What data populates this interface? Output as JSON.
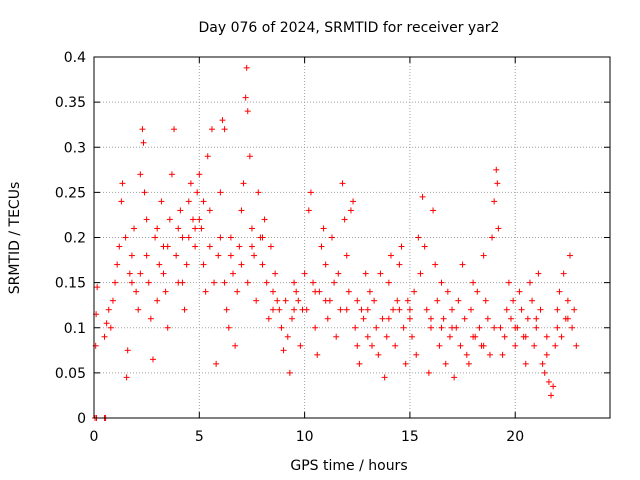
{
  "chart_data": {
    "type": "scatter",
    "title": "Day 076 of 2024, SRMTID for receiver yar2",
    "xlabel": "GPS time / hours",
    "ylabel": "SRMTID / TECUs",
    "xlim": [
      0,
      24.5
    ],
    "ylim": [
      0,
      0.4
    ],
    "xticks": [
      0,
      5,
      10,
      15,
      20
    ],
    "xtick_labels": [
      "0",
      "5",
      "10",
      "15",
      "20"
    ],
    "yticks": [
      0,
      0.05,
      0.1,
      0.15,
      0.2,
      0.25,
      0.3,
      0.35,
      0.4
    ],
    "ytick_labels": [
      "0",
      "0.05",
      "0.1",
      "0.15",
      "0.2",
      "0.25",
      "0.3",
      "0.35",
      "0.4"
    ],
    "grid": true,
    "marker": "+",
    "colors": {
      "series": "#ff0000",
      "grid": "#a0a0a0",
      "axis": "#000000"
    },
    "series": [
      {
        "name": "SRMTID",
        "points": [
          [
            0.05,
            0.0
          ],
          [
            0.12,
            0.0
          ],
          [
            0.5,
            0.0
          ],
          [
            0.55,
            0.0
          ],
          [
            0.1,
            0.115
          ],
          [
            0.15,
            0.145
          ],
          [
            0.08,
            0.08
          ],
          [
            0.5,
            0.09
          ],
          [
            0.6,
            0.105
          ],
          [
            0.7,
            0.12
          ],
          [
            0.8,
            0.1
          ],
          [
            0.9,
            0.13
          ],
          [
            1.0,
            0.15
          ],
          [
            1.1,
            0.17
          ],
          [
            1.2,
            0.19
          ],
          [
            1.3,
            0.24
          ],
          [
            1.35,
            0.26
          ],
          [
            1.5,
            0.2
          ],
          [
            1.6,
            0.075
          ],
          [
            1.55,
            0.045
          ],
          [
            1.7,
            0.16
          ],
          [
            1.8,
            0.18
          ],
          [
            1.9,
            0.21
          ],
          [
            2.0,
            0.14
          ],
          [
            2.1,
            0.12
          ],
          [
            2.2,
            0.27
          ],
          [
            2.3,
            0.32
          ],
          [
            2.35,
            0.305
          ],
          [
            2.4,
            0.25
          ],
          [
            2.5,
            0.18
          ],
          [
            2.6,
            0.15
          ],
          [
            2.7,
            0.11
          ],
          [
            2.8,
            0.065
          ],
          [
            2.9,
            0.2
          ],
          [
            3.0,
            0.13
          ],
          [
            3.1,
            0.17
          ],
          [
            3.2,
            0.24
          ],
          [
            3.3,
            0.19
          ],
          [
            3.4,
            0.14
          ],
          [
            3.5,
            0.1
          ],
          [
            3.6,
            0.22
          ],
          [
            3.7,
            0.27
          ],
          [
            3.8,
            0.32
          ],
          [
            3.9,
            0.18
          ],
          [
            4.0,
            0.15
          ],
          [
            4.1,
            0.23
          ],
          [
            4.2,
            0.2
          ],
          [
            4.3,
            0.12
          ],
          [
            4.4,
            0.17
          ],
          [
            4.5,
            0.24
          ],
          [
            4.6,
            0.26
          ],
          [
            4.7,
            0.22
          ],
          [
            4.8,
            0.19
          ],
          [
            4.9,
            0.25
          ],
          [
            5.0,
            0.27
          ],
          [
            5.1,
            0.21
          ],
          [
            5.2,
            0.17
          ],
          [
            5.3,
            0.14
          ],
          [
            5.4,
            0.29
          ],
          [
            5.5,
            0.23
          ],
          [
            5.6,
            0.32
          ],
          [
            5.7,
            0.15
          ],
          [
            5.8,
            0.06
          ],
          [
            5.9,
            0.18
          ],
          [
            6.0,
            0.25
          ],
          [
            6.1,
            0.33
          ],
          [
            6.2,
            0.32
          ],
          [
            6.3,
            0.12
          ],
          [
            6.4,
            0.1
          ],
          [
            6.5,
            0.2
          ],
          [
            6.6,
            0.16
          ],
          [
            6.7,
            0.08
          ],
          [
            6.8,
            0.14
          ],
          [
            6.9,
            0.19
          ],
          [
            7.0,
            0.23
          ],
          [
            7.1,
            0.26
          ],
          [
            7.2,
            0.355
          ],
          [
            7.25,
            0.388
          ],
          [
            7.3,
            0.34
          ],
          [
            7.4,
            0.29
          ],
          [
            7.5,
            0.21
          ],
          [
            7.6,
            0.18
          ],
          [
            7.7,
            0.13
          ],
          [
            7.8,
            0.25
          ],
          [
            7.9,
            0.2
          ],
          [
            8.0,
            0.17
          ],
          [
            8.1,
            0.22
          ],
          [
            8.2,
            0.15
          ],
          [
            8.3,
            0.11
          ],
          [
            8.4,
            0.19
          ],
          [
            8.5,
            0.14
          ],
          [
            8.6,
            0.16
          ],
          [
            8.7,
            0.13
          ],
          [
            8.8,
            0.12
          ],
          [
            8.9,
            0.1
          ],
          [
            9.0,
            0.075
          ],
          [
            9.1,
            0.13
          ],
          [
            9.2,
            0.09
          ],
          [
            9.3,
            0.05
          ],
          [
            9.4,
            0.11
          ],
          [
            9.5,
            0.15
          ],
          [
            9.6,
            0.14
          ],
          [
            9.7,
            0.13
          ],
          [
            9.8,
            0.08
          ],
          [
            9.9,
            0.12
          ],
          [
            10.0,
            0.16
          ],
          [
            10.1,
            0.12
          ],
          [
            10.2,
            0.23
          ],
          [
            10.3,
            0.25
          ],
          [
            10.4,
            0.15
          ],
          [
            10.5,
            0.1
          ],
          [
            10.6,
            0.07
          ],
          [
            10.7,
            0.14
          ],
          [
            10.8,
            0.19
          ],
          [
            10.9,
            0.21
          ],
          [
            11.0,
            0.17
          ],
          [
            11.1,
            0.11
          ],
          [
            11.2,
            0.13
          ],
          [
            11.3,
            0.2
          ],
          [
            11.4,
            0.15
          ],
          [
            11.5,
            0.09
          ],
          [
            11.6,
            0.16
          ],
          [
            11.7,
            0.12
          ],
          [
            11.8,
            0.26
          ],
          [
            11.9,
            0.22
          ],
          [
            12.0,
            0.18
          ],
          [
            12.1,
            0.14
          ],
          [
            12.2,
            0.23
          ],
          [
            12.3,
            0.24
          ],
          [
            12.4,
            0.1
          ],
          [
            12.5,
            0.08
          ],
          [
            12.6,
            0.06
          ],
          [
            12.7,
            0.12
          ],
          [
            12.8,
            0.11
          ],
          [
            12.9,
            0.16
          ],
          [
            13.0,
            0.09
          ],
          [
            13.1,
            0.14
          ],
          [
            13.2,
            0.08
          ],
          [
            13.3,
            0.13
          ],
          [
            13.4,
            0.1
          ],
          [
            13.5,
            0.07
          ],
          [
            13.6,
            0.16
          ],
          [
            13.7,
            0.11
          ],
          [
            13.8,
            0.045
          ],
          [
            13.9,
            0.09
          ],
          [
            14.0,
            0.15
          ],
          [
            14.1,
            0.18
          ],
          [
            14.2,
            0.12
          ],
          [
            14.3,
            0.08
          ],
          [
            14.4,
            0.13
          ],
          [
            14.5,
            0.17
          ],
          [
            14.6,
            0.19
          ],
          [
            14.7,
            0.1
          ],
          [
            14.8,
            0.06
          ],
          [
            14.9,
            0.13
          ],
          [
            15.0,
            0.11
          ],
          [
            15.1,
            0.09
          ],
          [
            15.2,
            0.14
          ],
          [
            15.3,
            0.07
          ],
          [
            15.4,
            0.2
          ],
          [
            15.5,
            0.16
          ],
          [
            15.6,
            0.245
          ],
          [
            15.7,
            0.19
          ],
          [
            15.8,
            0.12
          ],
          [
            15.9,
            0.05
          ],
          [
            16.0,
            0.1
          ],
          [
            16.1,
            0.23
          ],
          [
            16.2,
            0.17
          ],
          [
            16.3,
            0.13
          ],
          [
            16.4,
            0.08
          ],
          [
            16.5,
            0.15
          ],
          [
            16.6,
            0.11
          ],
          [
            16.7,
            0.06
          ],
          [
            16.8,
            0.14
          ],
          [
            16.9,
            0.09
          ],
          [
            17.0,
            0.12
          ],
          [
            17.1,
            0.045
          ],
          [
            17.2,
            0.1
          ],
          [
            17.3,
            0.13
          ],
          [
            17.4,
            0.08
          ],
          [
            17.5,
            0.17
          ],
          [
            17.6,
            0.11
          ],
          [
            17.7,
            0.07
          ],
          [
            17.8,
            0.06
          ],
          [
            17.9,
            0.12
          ],
          [
            18.0,
            0.15
          ],
          [
            18.1,
            0.09
          ],
          [
            18.2,
            0.14
          ],
          [
            18.3,
            0.1
          ],
          [
            18.4,
            0.08
          ],
          [
            18.5,
            0.18
          ],
          [
            18.6,
            0.13
          ],
          [
            18.7,
            0.11
          ],
          [
            18.8,
            0.07
          ],
          [
            18.9,
            0.2
          ],
          [
            19.0,
            0.24
          ],
          [
            19.1,
            0.275
          ],
          [
            19.15,
            0.26
          ],
          [
            19.2,
            0.21
          ],
          [
            19.3,
            0.1
          ],
          [
            19.4,
            0.07
          ],
          [
            19.5,
            0.09
          ],
          [
            19.6,
            0.12
          ],
          [
            19.7,
            0.15
          ],
          [
            19.8,
            0.11
          ],
          [
            19.9,
            0.13
          ],
          [
            20.0,
            0.08
          ],
          [
            20.1,
            0.1
          ],
          [
            20.2,
            0.14
          ],
          [
            20.3,
            0.12
          ],
          [
            20.4,
            0.09
          ],
          [
            20.5,
            0.06
          ],
          [
            20.6,
            0.11
          ],
          [
            20.7,
            0.15
          ],
          [
            20.8,
            0.13
          ],
          [
            20.9,
            0.08
          ],
          [
            21.0,
            0.1
          ],
          [
            21.1,
            0.16
          ],
          [
            21.2,
            0.12
          ],
          [
            21.3,
            0.06
          ],
          [
            21.4,
            0.05
          ],
          [
            21.5,
            0.09
          ],
          [
            21.6,
            0.04
          ],
          [
            21.7,
            0.025
          ],
          [
            21.8,
            0.035
          ],
          [
            21.9,
            0.08
          ],
          [
            22.0,
            0.12
          ],
          [
            22.1,
            0.14
          ],
          [
            22.2,
            0.09
          ],
          [
            22.3,
            0.16
          ],
          [
            22.4,
            0.11
          ],
          [
            22.5,
            0.13
          ],
          [
            22.6,
            0.18
          ],
          [
            22.7,
            0.1
          ],
          [
            22.8,
            0.12
          ],
          [
            22.9,
            0.08
          ],
          [
            2.5,
            0.22
          ],
          [
            3.0,
            0.21
          ],
          [
            3.5,
            0.19
          ],
          [
            4.0,
            0.21
          ],
          [
            4.5,
            0.2
          ],
          [
            5.0,
            0.22
          ],
          [
            5.5,
            0.19
          ],
          [
            6.0,
            0.2
          ],
          [
            6.5,
            0.18
          ],
          [
            7.0,
            0.17
          ],
          [
            7.5,
            0.19
          ],
          [
            8.0,
            0.2
          ],
          [
            4.2,
            0.15
          ],
          [
            4.8,
            0.21
          ],
          [
            5.2,
            0.24
          ],
          [
            3.3,
            0.16
          ],
          [
            6.2,
            0.15
          ],
          [
            7.3,
            0.15
          ],
          [
            1.8,
            0.15
          ],
          [
            2.2,
            0.16
          ],
          [
            10.5,
            0.14
          ],
          [
            11.0,
            0.13
          ],
          [
            12.0,
            0.12
          ],
          [
            13.0,
            0.12
          ],
          [
            14.0,
            0.11
          ],
          [
            15.0,
            0.12
          ],
          [
            16.0,
            0.11
          ],
          [
            17.0,
            0.1
          ],
          [
            18.0,
            0.09
          ],
          [
            19.0,
            0.1
          ],
          [
            20.0,
            0.1
          ],
          [
            21.0,
            0.11
          ],
          [
            22.0,
            0.1
          ],
          [
            22.5,
            0.11
          ],
          [
            9.5,
            0.12
          ],
          [
            8.5,
            0.12
          ],
          [
            12.5,
            0.13
          ],
          [
            14.5,
            0.12
          ],
          [
            16.5,
            0.1
          ],
          [
            18.5,
            0.08
          ],
          [
            20.5,
            0.09
          ],
          [
            21.5,
            0.07
          ]
        ]
      }
    ]
  }
}
